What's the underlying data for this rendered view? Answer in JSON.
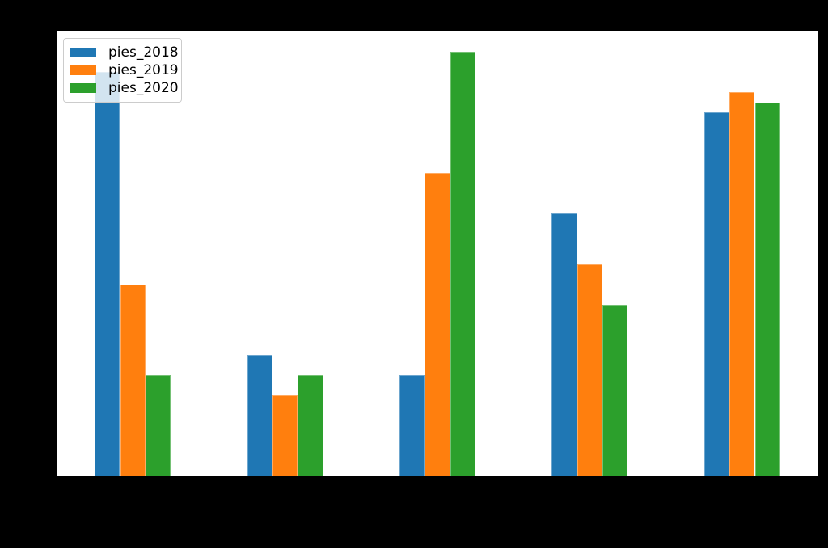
{
  "figure": {
    "background": "#000000",
    "plot_background": "#ffffff"
  },
  "chart_data": {
    "type": "bar",
    "x": [
      0,
      1,
      2,
      3,
      4
    ],
    "x_tick_labels_visible": false,
    "y_tick_labels_visible": false,
    "series": [
      {
        "name": "pies_2018",
        "color": "#1f77b4",
        "values": [
          40,
          12,
          10,
          26,
          36
        ]
      },
      {
        "name": "pies_2019",
        "color": "#ff7f0e",
        "values": [
          19,
          8,
          30,
          21,
          38
        ]
      },
      {
        "name": "pies_2020",
        "color": "#2ca02c",
        "values": [
          10,
          10,
          42,
          17,
          37
        ]
      }
    ],
    "xlim": [
      -0.5,
      4.5
    ],
    "ylim": [
      0,
      44.1
    ],
    "grid": false,
    "legend_position": "upper left",
    "legend_frame": {
      "background": "rgba(255,255,255,0.8)",
      "border_color": "#cccccc"
    }
  }
}
